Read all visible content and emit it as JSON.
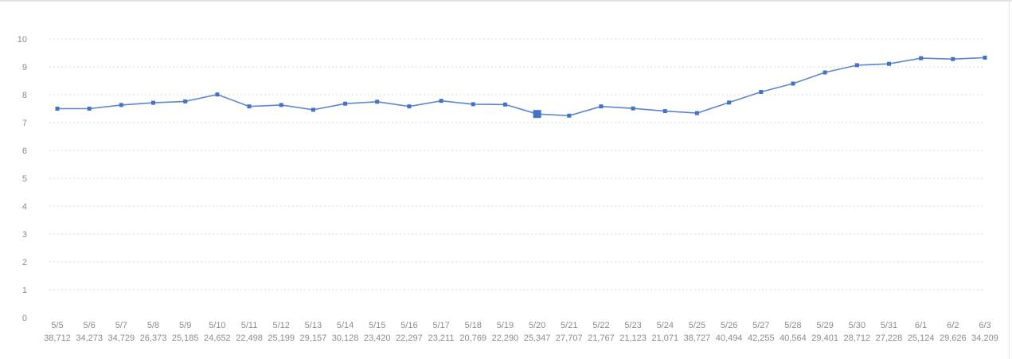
{
  "chart_style": {
    "line_color": "#5b87ce",
    "marker_color": "#4472c4",
    "grid_color": "#dadada",
    "label_color": "#8b8b8b",
    "border_color": "#e2e2e2",
    "background": "#ffffff"
  },
  "chart_data": {
    "type": "line",
    "title": "",
    "xlabel": "",
    "ylabel": "",
    "legend": false,
    "grid": true,
    "ylim": [
      0,
      10
    ],
    "yticks": [
      0,
      1,
      2,
      3,
      4,
      5,
      6,
      7,
      8,
      9,
      10
    ],
    "highlighted_index": 15,
    "categories": [
      "5/5",
      "5/6",
      "5/7",
      "5/8",
      "5/9",
      "5/10",
      "5/11",
      "5/12",
      "5/13",
      "5/14",
      "5/15",
      "5/16",
      "5/17",
      "5/18",
      "5/19",
      "5/20",
      "5/21",
      "5/22",
      "5/23",
      "5/24",
      "5/25",
      "5/26",
      "5/27",
      "5/28",
      "5/29",
      "5/30",
      "5/31",
      "6/1",
      "6/2",
      "6/3"
    ],
    "category_sublabels": [
      "38,712",
      "34,273",
      "34,729",
      "26,373",
      "25,185",
      "24,652",
      "22,498",
      "25,199",
      "29,157",
      "30,128",
      "23,420",
      "22,297",
      "23,211",
      "20,769",
      "22,290",
      "25,347",
      "27,707",
      "21,767",
      "21,123",
      "21,071",
      "38,727",
      "40,494",
      "42,255",
      "40,564",
      "29,401",
      "28,712",
      "27,228",
      "25,124",
      "29,626",
      "34,209"
    ],
    "series": [
      {
        "name": "",
        "values": [
          7.5,
          7.5,
          7.63,
          7.71,
          7.76,
          8.01,
          7.58,
          7.63,
          7.46,
          7.68,
          7.75,
          7.58,
          7.78,
          7.66,
          7.65,
          7.31,
          7.25,
          7.58,
          7.51,
          7.41,
          7.34,
          7.72,
          8.1,
          8.4,
          8.8,
          9.06,
          9.11,
          9.31,
          9.28,
          9.33
        ]
      }
    ]
  }
}
